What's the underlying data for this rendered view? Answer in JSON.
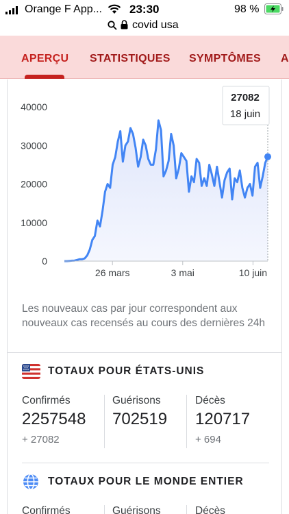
{
  "status_bar": {
    "carrier": "Orange F App...",
    "time": "23:30",
    "battery_percent": "98 %"
  },
  "url_bar": {
    "url": "covid usa"
  },
  "tabs": [
    {
      "label": "APERÇU",
      "selected": true
    },
    {
      "label": "STATISTIQUES",
      "selected": false
    },
    {
      "label": "SYMPTÔMES",
      "selected": false
    },
    {
      "label": "A",
      "selected": false
    }
  ],
  "chart_data": {
    "type": "area",
    "y_ticks": [
      "40000",
      "30000",
      "20000",
      "10000",
      "0"
    ],
    "ylim": [
      0,
      40000
    ],
    "x_ticks": [
      {
        "label": "26 mars",
        "day": 39
      },
      {
        "label": "3 mai",
        "day": 77
      },
      {
        "label": "10 juin",
        "day": 115
      }
    ],
    "x_range_days": [
      13,
      123
    ],
    "values": [
      0,
      0,
      50,
      100,
      150,
      300,
      500,
      500,
      700,
      1500,
      3000,
      5500,
      6500,
      10500,
      9000,
      13000,
      18000,
      20000,
      19000,
      25000,
      27000,
      31000,
      33700,
      25800,
      30000,
      31000,
      34500,
      33000,
      29500,
      24500,
      27000,
      31500,
      30000,
      26500,
      25000,
      25000,
      29000,
      36500,
      34000,
      22000,
      23500,
      26000,
      33000,
      30000,
      21500,
      24000,
      28000,
      27000,
      26000,
      18000,
      22000,
      20500,
      26500,
      25500,
      19500,
      21500,
      19500,
      25000,
      22500,
      19500,
      24500,
      20500,
      16500,
      21000,
      23000,
      24000,
      16000,
      21500,
      20500,
      23500,
      19000,
      16500,
      19000,
      20000,
      17000,
      24500,
      25500,
      19000,
      22000,
      25500,
      27082
    ],
    "series_color": "#4285f4",
    "tooltip": {
      "value": "27082",
      "date": "18 juin"
    },
    "grid": false
  },
  "note": "Les nouveaux cas par jour correspondent aux nouveaux cas recensés au cours des dernières 24h",
  "us_totals": {
    "title": "TOTAUX POUR ÉTATS-UNIS",
    "confirmed_label": "Confirmés",
    "confirmed_value": "2257548",
    "confirmed_delta": "+ 27082",
    "recovered_label": "Guérisons",
    "recovered_value": "702519",
    "deaths_label": "Décès",
    "deaths_value": "120717",
    "deaths_delta": "+ 694"
  },
  "world_totals": {
    "title": "TOTAUX POUR LE MONDE ENTIER",
    "confirmed_label": "Confirmés",
    "recovered_label": "Guérisons",
    "deaths_label": "Décès"
  }
}
